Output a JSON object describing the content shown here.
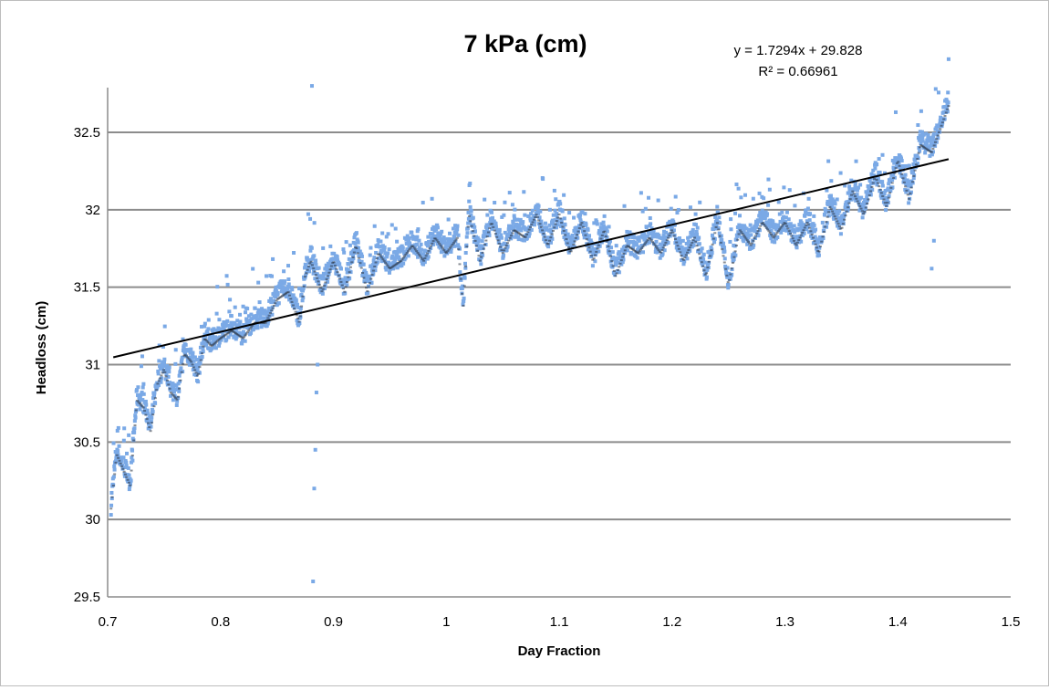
{
  "chart_data": {
    "type": "scatter",
    "title": "7 kPa (cm)",
    "xlabel": "Day Fraction",
    "ylabel": "Headloss (cm)",
    "xlim": [
      0.7,
      1.5
    ],
    "ylim": [
      29.5,
      32.8
    ],
    "xticks": [
      0.7,
      0.8,
      0.9,
      1,
      1.1,
      1.2,
      1.3,
      1.4,
      1.5
    ],
    "xtick_labels": [
      "0.7",
      "0.8",
      "0.9",
      "1",
      "1.1",
      "1.2",
      "1.3",
      "1.4",
      "1.5"
    ],
    "yticks": [
      29.5,
      30,
      30.5,
      31,
      31.5,
      32,
      32.5
    ],
    "ytick_labels": [
      "29.5",
      "30",
      "30.5",
      "31",
      "31.5",
      "32",
      "32.5"
    ],
    "grid": "horizontal",
    "marker_color": "#7aa9e6",
    "trendline_color": "#000000",
    "series": [
      {
        "x": [
          0.703,
          0.708,
          0.714,
          0.72,
          0.726,
          0.732,
          0.738,
          0.744,
          0.75,
          0.756,
          0.762,
          0.768,
          0.774,
          0.78,
          0.786,
          0.792,
          0.8,
          0.81,
          0.82,
          0.83,
          0.84,
          0.85,
          0.86,
          0.87,
          0.875,
          0.88,
          0.89,
          0.9,
          0.91,
          0.92,
          0.93,
          0.94,
          0.95,
          0.96,
          0.97,
          0.98,
          0.99,
          1.0,
          1.01,
          1.015,
          1.02,
          1.03,
          1.04,
          1.05,
          1.06,
          1.07,
          1.08,
          1.09,
          1.1,
          1.11,
          1.12,
          1.13,
          1.14,
          1.15,
          1.16,
          1.17,
          1.18,
          1.19,
          1.2,
          1.21,
          1.22,
          1.23,
          1.24,
          1.25,
          1.26,
          1.27,
          1.28,
          1.29,
          1.3,
          1.31,
          1.32,
          1.33,
          1.34,
          1.35,
          1.36,
          1.37,
          1.38,
          1.39,
          1.4,
          1.41,
          1.42,
          1.43,
          1.44,
          1.445
        ],
        "y": [
          30.1,
          30.45,
          30.35,
          30.25,
          30.8,
          30.75,
          30.6,
          30.9,
          31.0,
          30.85,
          30.8,
          31.1,
          31.05,
          30.95,
          31.2,
          31.15,
          31.2,
          31.25,
          31.2,
          31.3,
          31.3,
          31.45,
          31.5,
          31.3,
          31.6,
          31.7,
          31.5,
          31.7,
          31.5,
          31.8,
          31.5,
          31.75,
          31.65,
          31.7,
          31.8,
          31.7,
          31.85,
          31.75,
          31.85,
          31.4,
          32.0,
          31.7,
          31.95,
          31.75,
          31.9,
          31.85,
          32.0,
          31.8,
          32.0,
          31.75,
          31.95,
          31.7,
          31.9,
          31.6,
          31.8,
          31.75,
          31.85,
          31.75,
          31.9,
          31.7,
          31.85,
          31.6,
          31.95,
          31.55,
          31.9,
          31.8,
          31.95,
          31.85,
          31.95,
          31.8,
          31.95,
          31.75,
          32.05,
          31.9,
          32.15,
          32.0,
          32.25,
          32.05,
          32.35,
          32.1,
          32.45,
          32.4,
          32.6,
          32.7
        ],
        "outliers_x": [
          0.881,
          0.882,
          0.883,
          0.884,
          0.885,
          0.886,
          1.43,
          1.432
        ],
        "outliers_y": [
          32.8,
          29.6,
          30.2,
          30.45,
          30.82,
          31.0,
          31.62,
          31.8
        ]
      }
    ],
    "trendline": {
      "equation": "y = 1.7294x + 29.828",
      "r_squared": "R² = 0.66961",
      "slope": 1.7294,
      "intercept": 29.828,
      "x_range": [
        0.705,
        1.445
      ]
    }
  }
}
